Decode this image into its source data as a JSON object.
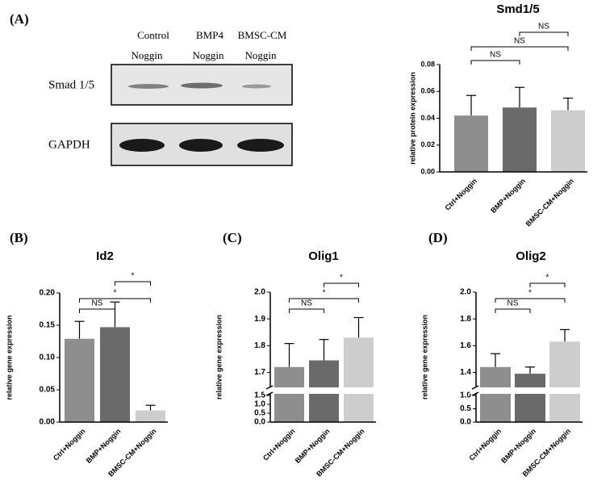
{
  "panel_labels": [
    "(A)",
    "(B)",
    "(C)",
    "(D)"
  ],
  "blot": {
    "lanes": [
      [
        "Control",
        "Noggin"
      ],
      [
        "BMP4",
        "Noggin"
      ],
      [
        "BMSC-CM",
        "Noggin"
      ]
    ],
    "rows": [
      "Smad 1/5",
      "GAPDH"
    ]
  },
  "chart_data": [
    {
      "type": "bar",
      "title": "Smd1/5",
      "ylabel": "relative protein expression",
      "categories": [
        "Ctrl+Noggin",
        "BMP+Noggin",
        "BMSC-CM+Noggin"
      ],
      "values": [
        0.042,
        0.048,
        0.046
      ],
      "errors": [
        0.015,
        0.015,
        0.009
      ],
      "colors": [
        "#8e8e8e",
        "#6a6a6a",
        "#cdcdcd"
      ],
      "ylim": [
        0,
        0.08
      ],
      "yticks": [
        {
          "value": 0,
          "label": "0.00"
        },
        0.02,
        0.04,
        0.06,
        0.08
      ],
      "comparisons": [
        "NS",
        "NS",
        "NS"
      ]
    },
    {
      "type": "bar",
      "title": "Id2",
      "ylabel": "relative gene expression",
      "categories": [
        "Ctrl+Noggin",
        "BMP+Noggin",
        "BMSC-CM+Noggin"
      ],
      "values": [
        0.129,
        0.147,
        0.018
      ],
      "errors": [
        0.027,
        0.039,
        0.008
      ],
      "colors": [
        "#8e8e8e",
        "#6a6a6a",
        "#cdcdcd"
      ],
      "ylim": [
        0,
        0.2
      ],
      "yticks": [
        {
          "value": 0,
          "label": "0.00"
        },
        0.05,
        {
          "value": 0.1,
          "label": "0.10"
        },
        0.15,
        {
          "value": 0.2,
          "label": "0.20"
        }
      ],
      "comparisons": [
        "NS",
        "*",
        "*"
      ]
    },
    {
      "type": "bar",
      "title": "Olig1",
      "ylabel": "relative gene expression",
      "categories": [
        "Ctrl+Noggin",
        "BMP+Noggin",
        "BMSC-CM+Noggin"
      ],
      "values": [
        1.72,
        1.745,
        1.83
      ],
      "errors": [
        0.088,
        0.078,
        0.075
      ],
      "colors": [
        "#8e8e8e",
        "#6a6a6a",
        "#cdcdcd"
      ],
      "ylim": [
        0,
        2.0
      ],
      "ybreak": [
        1.5,
        1.65
      ],
      "yticks": [
        {
          "value": 0,
          "label": "0.0"
        },
        0.5,
        {
          "value": 1,
          "label": "1.0"
        },
        1.5,
        1.7,
        1.8,
        1.9,
        {
          "value": 2,
          "label": "2.0"
        }
      ],
      "comparisons": [
        "NS",
        "*",
        "*"
      ]
    },
    {
      "type": "bar",
      "title": "Olig2",
      "ylabel": "relative gene expression",
      "categories": [
        "Ctrl+Noggin",
        "BMP+Noggin",
        "BMSC-CM+Noggin"
      ],
      "values": [
        1.44,
        1.39,
        1.63
      ],
      "errors": [
        0.1,
        0.05,
        0.09
      ],
      "colors": [
        "#8e8e8e",
        "#6a6a6a",
        "#cdcdcd"
      ],
      "ylim": [
        0,
        2.0
      ],
      "ybreak": [
        1.0,
        1.3
      ],
      "yticks": [
        {
          "value": 0,
          "label": "0.0"
        },
        0.5,
        {
          "value": 1,
          "label": "1.0"
        },
        1.4,
        1.6,
        1.8,
        {
          "value": 2,
          "label": "2.0"
        }
      ],
      "comparisons": [
        "NS",
        "*",
        "*"
      ]
    }
  ]
}
